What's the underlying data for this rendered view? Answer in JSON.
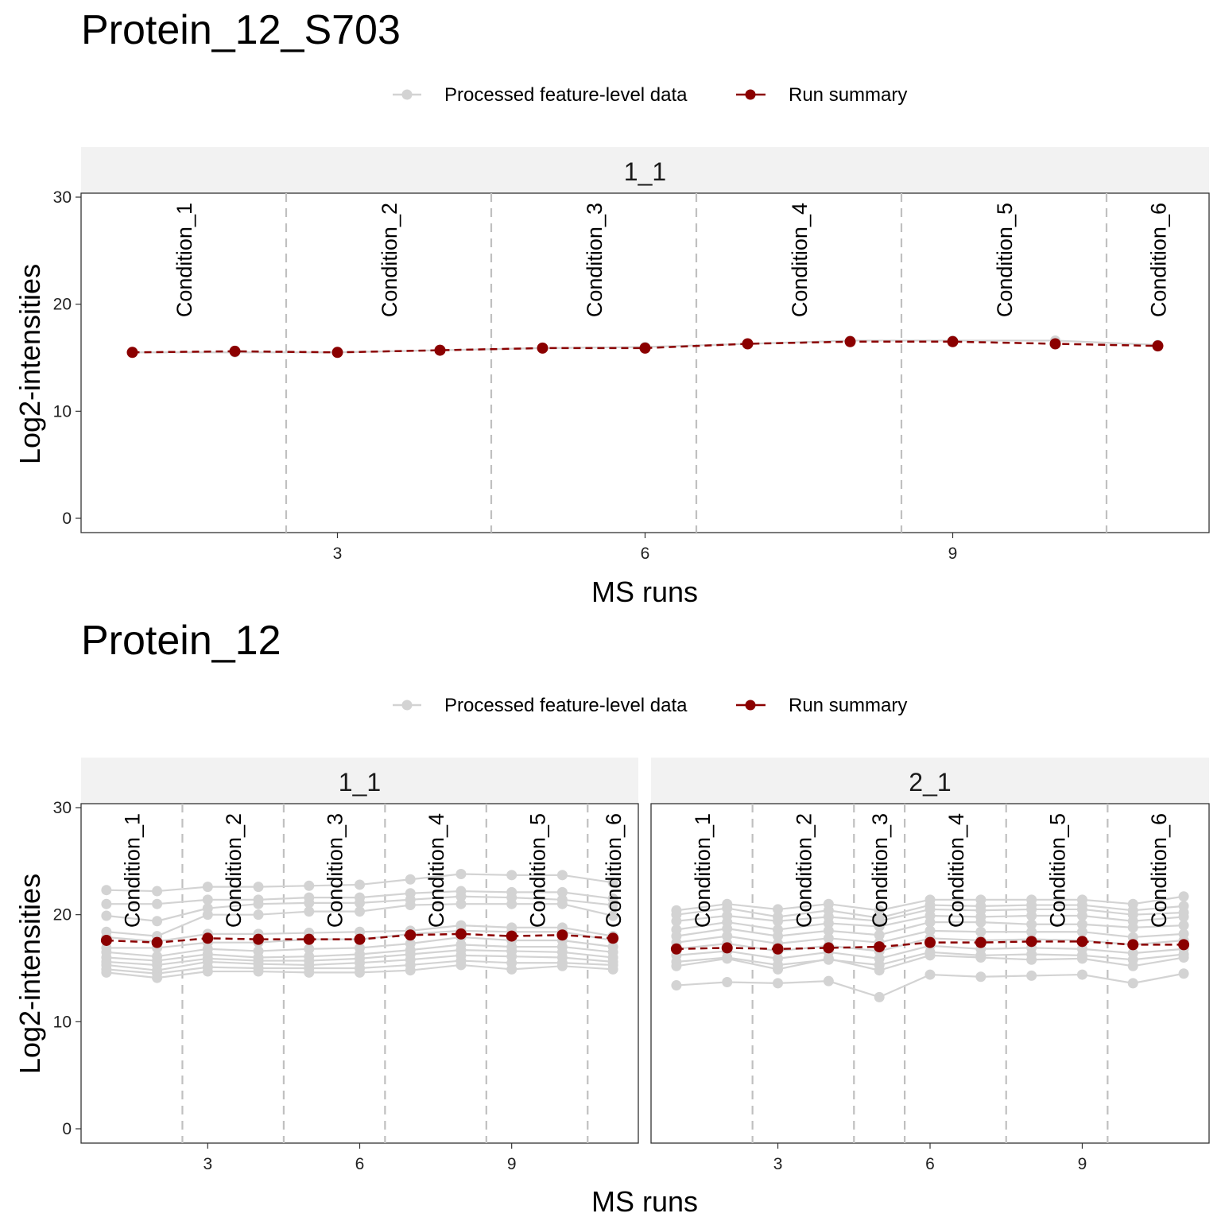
{
  "colors": {
    "feature": "#d3d3d3",
    "summary": "#8b0000",
    "divider": "#c0c0c0",
    "strip_bg": "#f2f2f2",
    "axis": "#333333"
  },
  "legend": {
    "feature_label": "Processed feature-level data",
    "summary_label": "Run summary"
  },
  "chart_data": [
    {
      "type": "line",
      "title": "Protein_12_S703",
      "xlabel": "MS runs",
      "ylabel": "Log2-intensities",
      "ylim": [
        0,
        30
      ],
      "yticks": [
        0,
        10,
        20,
        30
      ],
      "xticks": [
        3,
        6,
        9
      ],
      "panels": [
        {
          "strip": "1_1",
          "xlim": [
            0.5,
            11.5
          ],
          "runs": [
            1,
            2,
            3,
            4,
            5,
            6,
            7,
            8,
            9,
            10,
            11
          ],
          "condition_breaks": [
            2.5,
            4.5,
            6.5,
            8.5,
            10.5
          ],
          "conditions": [
            {
              "label": "Condition_1",
              "x": 1.5
            },
            {
              "label": "Condition_2",
              "x": 3.5
            },
            {
              "label": "Condition_3",
              "x": 5.5
            },
            {
              "label": "Condition_4",
              "x": 7.5
            },
            {
              "label": "Condition_5",
              "x": 9.5
            },
            {
              "label": "Condition_6",
              "x": 11.0
            }
          ],
          "features": [
            [
              15.5,
              15.5,
              15.5,
              15.7,
              15.9,
              16.0,
              16.3,
              16.6,
              16.6,
              16.6,
              16.2
            ]
          ],
          "summary": [
            15.5,
            15.6,
            15.5,
            15.7,
            15.9,
            15.9,
            16.3,
            16.5,
            16.5,
            16.3,
            16.1
          ]
        }
      ]
    },
    {
      "type": "line",
      "title": "Protein_12",
      "xlabel": "MS runs",
      "ylabel": "Log2-intensities",
      "ylim": [
        0,
        30
      ],
      "yticks": [
        0,
        10,
        20,
        30
      ],
      "xticks": [
        3,
        6,
        9
      ],
      "panels": [
        {
          "strip": "1_1",
          "xlim": [
            0.5,
            11.5
          ],
          "runs": [
            1,
            2,
            3,
            4,
            5,
            6,
            7,
            8,
            9,
            10,
            11
          ],
          "condition_breaks": [
            2.5,
            4.5,
            6.5,
            8.5,
            10.5
          ],
          "conditions": [
            {
              "label": "Condition_1",
              "x": 1.5
            },
            {
              "label": "Condition_2",
              "x": 3.5
            },
            {
              "label": "Condition_3",
              "x": 5.5
            },
            {
              "label": "Condition_4",
              "x": 7.5
            },
            {
              "label": "Condition_5",
              "x": 9.5
            },
            {
              "label": "Condition_6",
              "x": 11.0
            }
          ],
          "features": [
            [
              22.3,
              22.2,
              22.6,
              22.6,
              22.7,
              22.8,
              23.3,
              23.8,
              23.7,
              23.7,
              23.0
            ],
            [
              21.0,
              21.0,
              21.4,
              21.4,
              21.6,
              21.6,
              22.0,
              22.2,
              22.1,
              22.1,
              21.5
            ],
            [
              19.9,
              19.4,
              20.6,
              21.0,
              21.1,
              21.1,
              21.4,
              21.7,
              21.6,
              21.4,
              20.9
            ],
            [
              18.4,
              18.0,
              20.0,
              20.0,
              20.3,
              20.3,
              20.9,
              21.0,
              21.0,
              21.0,
              19.9
            ],
            [
              17.9,
              17.5,
              18.2,
              18.2,
              18.3,
              18.4,
              18.5,
              19.0,
              18.8,
              18.8,
              18.0
            ],
            [
              16.9,
              16.9,
              17.4,
              17.4,
              17.7,
              17.7,
              18.2,
              18.5,
              18.4,
              18.4,
              17.6
            ],
            [
              16.5,
              16.1,
              16.8,
              16.6,
              16.8,
              16.9,
              17.3,
              17.9,
              17.6,
              17.6,
              17.0
            ],
            [
              16.0,
              15.7,
              16.3,
              16.0,
              16.1,
              16.3,
              16.7,
              17.2,
              17.0,
              17.0,
              16.5
            ],
            [
              15.6,
              15.3,
              15.9,
              15.7,
              15.7,
              15.9,
              16.3,
              16.7,
              16.6,
              16.5,
              16.0
            ],
            [
              15.3,
              14.8,
              15.6,
              15.4,
              15.3,
              15.5,
              15.8,
              16.2,
              16.1,
              16.0,
              15.6
            ],
            [
              14.9,
              14.5,
              15.1,
              15.0,
              15.0,
              15.0,
              15.3,
              15.7,
              15.5,
              15.5,
              15.3
            ],
            [
              14.6,
              14.1,
              14.7,
              14.7,
              14.6,
              14.6,
              14.8,
              15.3,
              14.9,
              15.2,
              14.9
            ]
          ],
          "summary": [
            17.6,
            17.4,
            17.8,
            17.7,
            17.7,
            17.7,
            18.1,
            18.2,
            18.0,
            18.1,
            17.8
          ]
        },
        {
          "strip": "2_1",
          "xlim": [
            0.5,
            11.5
          ],
          "runs": [
            1,
            2,
            3,
            4,
            5,
            6,
            7,
            8,
            9,
            10,
            11
          ],
          "condition_breaks": [
            2.5,
            4.5,
            5.5,
            7.5,
            9.5
          ],
          "conditions": [
            {
              "label": "Condition_1",
              "x": 1.5
            },
            {
              "label": "Condition_2",
              "x": 3.5
            },
            {
              "label": "Condition_3",
              "x": 5.0
            },
            {
              "label": "Condition_4",
              "x": 6.5
            },
            {
              "label": "Condition_5",
              "x": 8.5
            },
            {
              "label": "Condition_6",
              "x": 10.5
            }
          ],
          "features": [
            [
              20.4,
              21.0,
              20.5,
              21.0,
              20.4,
              21.4,
              21.4,
              21.4,
              21.4,
              21.0,
              21.7
            ],
            [
              20.0,
              20.6,
              19.8,
              20.4,
              19.7,
              20.9,
              20.8,
              20.9,
              20.9,
              20.4,
              20.8
            ],
            [
              19.4,
              19.9,
              19.4,
              19.8,
              19.4,
              20.5,
              20.4,
              20.5,
              20.5,
              20.0,
              20.2
            ],
            [
              18.6,
              19.3,
              18.6,
              19.2,
              18.9,
              19.9,
              19.8,
              19.9,
              19.9,
              19.4,
              19.8
            ],
            [
              18.0,
              18.7,
              18.0,
              18.5,
              18.1,
              19.3,
              19.3,
              19.1,
              19.1,
              18.8,
              19.0
            ],
            [
              17.4,
              18.0,
              17.3,
              17.8,
              17.4,
              18.5,
              18.4,
              18.4,
              18.4,
              17.9,
              18.2
            ],
            [
              16.8,
              17.3,
              16.6,
              17.1,
              16.6,
              17.8,
              17.6,
              17.7,
              17.6,
              17.2,
              17.6
            ],
            [
              16.2,
              16.6,
              15.9,
              16.5,
              15.9,
              17.1,
              16.8,
              16.9,
              16.8,
              16.4,
              16.8
            ],
            [
              15.6,
              16.0,
              15.3,
              15.8,
              15.3,
              16.5,
              16.2,
              16.3,
              16.2,
              15.8,
              16.3
            ],
            [
              15.2,
              15.9,
              14.9,
              15.9,
              14.8,
              16.2,
              16.0,
              15.8,
              15.9,
              15.2,
              16.0
            ],
            [
              13.4,
              13.7,
              13.6,
              13.8,
              12.3,
              14.4,
              14.2,
              14.3,
              14.4,
              13.6,
              14.5
            ]
          ],
          "summary": [
            16.8,
            16.9,
            16.8,
            16.9,
            17.0,
            17.4,
            17.4,
            17.5,
            17.5,
            17.2,
            17.2
          ]
        }
      ]
    }
  ]
}
